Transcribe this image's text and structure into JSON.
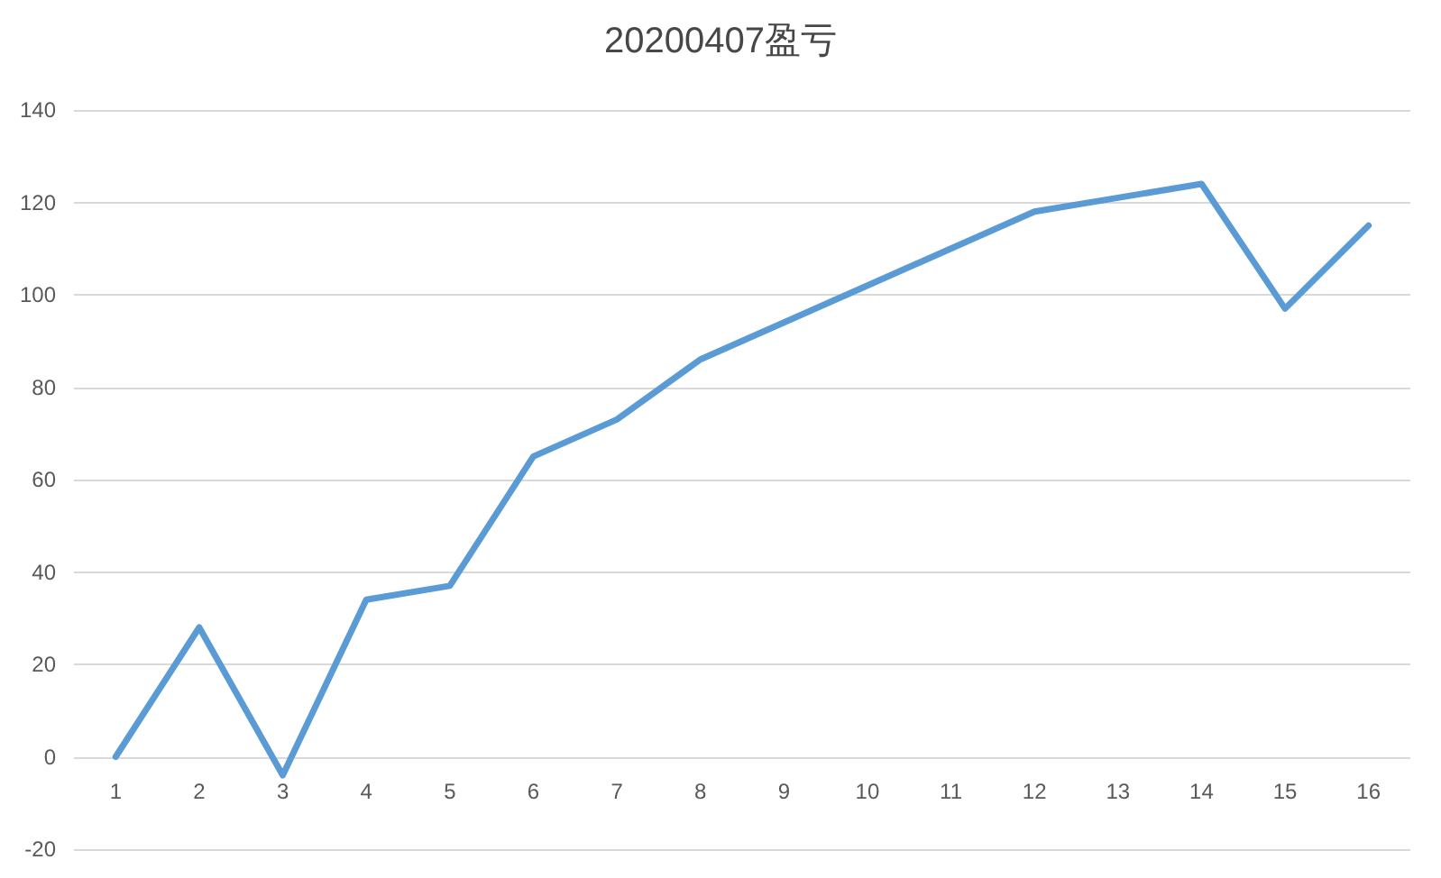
{
  "chart_data": {
    "type": "line",
    "title": "20200407盈亏",
    "x": [
      1,
      2,
      3,
      4,
      5,
      6,
      7,
      8,
      9,
      10,
      11,
      12,
      13,
      14,
      15,
      16
    ],
    "series": [
      {
        "color": "#5b9bd5",
        "values": [
          0,
          28,
          -4,
          34,
          37,
          65,
          73,
          86,
          94,
          102,
          110,
          118,
          121,
          124,
          97,
          115
        ]
      }
    ],
    "xlim": [
      0.5,
      16.5
    ],
    "xticks": [
      1,
      2,
      3,
      4,
      5,
      6,
      7,
      8,
      9,
      10,
      11,
      12,
      13,
      14,
      15,
      16
    ],
    "ylim": [
      -20,
      140
    ],
    "yticks": [
      -20,
      0,
      20,
      40,
      60,
      80,
      100,
      120,
      140
    ],
    "grid": "y",
    "marker": "none",
    "line_style": "solid"
  }
}
